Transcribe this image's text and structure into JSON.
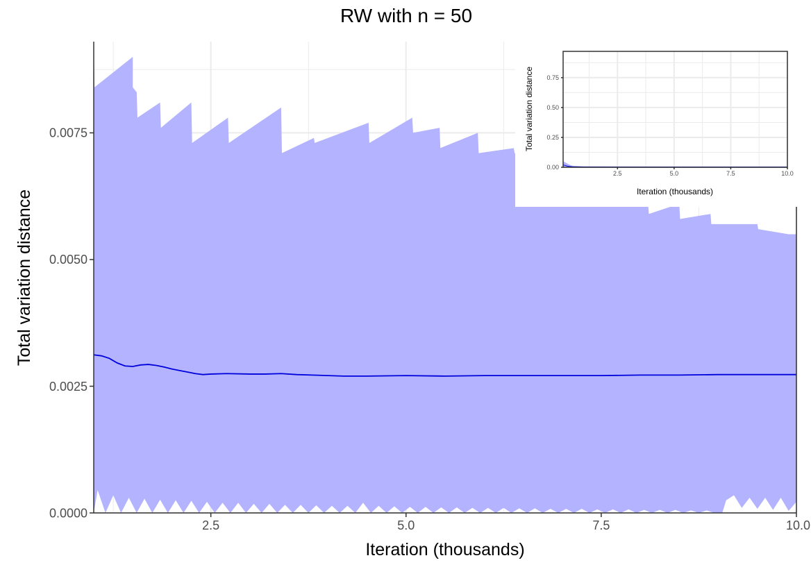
{
  "chart_data": [
    {
      "type": "area",
      "title": "RW with n = 50",
      "xlabel": "Iteration (thousands)",
      "ylabel": "Total variation distance",
      "xlim": [
        1.0,
        10.0
      ],
      "ylim": [
        0.0,
        0.0093
      ],
      "x_ticks": [
        2.5,
        5.0,
        7.5,
        10.0
      ],
      "x_tick_labels": [
        "2.5",
        "5.0",
        "7.5",
        "10.0"
      ],
      "y_ticks": [
        0.0,
        0.0025,
        0.005,
        0.0075
      ],
      "y_tick_labels": [
        "0.0000",
        "0.0025",
        "0.0050",
        "0.0075"
      ],
      "grid": true,
      "colors": {
        "band": "#b3b3ff",
        "line": "#0000dd",
        "grid": "#ebebeb",
        "axis": "#333333"
      },
      "series": [
        {
          "kind": "band_upper",
          "points": [
            [
              1.0,
              0.0093
            ],
            [
              1.01,
              0.0084
            ],
            [
              1.5,
              0.009
            ],
            [
              1.5,
              0.0084
            ],
            [
              1.55,
              0.0083
            ],
            [
              1.56,
              0.0078
            ],
            [
              1.85,
              0.0081
            ],
            [
              1.86,
              0.0076
            ],
            [
              2.25,
              0.0081
            ],
            [
              2.26,
              0.0073
            ],
            [
              2.72,
              0.0078
            ],
            [
              2.73,
              0.0073
            ],
            [
              3.4,
              0.008
            ],
            [
              3.41,
              0.0071
            ],
            [
              3.82,
              0.0074
            ],
            [
              3.83,
              0.0073
            ],
            [
              4.52,
              0.0077
            ],
            [
              4.53,
              0.0073
            ],
            [
              5.08,
              0.0078
            ],
            [
              5.09,
              0.0075
            ],
            [
              5.43,
              0.0076
            ],
            [
              5.44,
              0.0072
            ],
            [
              5.92,
              0.0075
            ],
            [
              5.93,
              0.0071
            ],
            [
              6.38,
              0.0072
            ],
            [
              6.39,
              0.0071
            ],
            [
              7.0,
              0.0068
            ],
            [
              7.4,
              0.0066
            ],
            [
              7.85,
              0.0063
            ],
            [
              8.1,
              0.0061
            ],
            [
              8.11,
              0.0059
            ],
            [
              8.5,
              0.0061
            ],
            [
              8.51,
              0.0058
            ],
            [
              8.9,
              0.0059
            ],
            [
              8.91,
              0.0057
            ],
            [
              9.5,
              0.0057
            ],
            [
              9.51,
              0.0056
            ],
            [
              9.9,
              0.0055
            ],
            [
              10.0,
              0.0055
            ]
          ]
        },
        {
          "kind": "band_lower",
          "points": [
            [
              1.0,
              0.0
            ],
            [
              1.05,
              0.00045
            ],
            [
              1.15,
              0.0
            ],
            [
              1.25,
              0.00035
            ],
            [
              1.35,
              0.0
            ],
            [
              1.45,
              0.0003
            ],
            [
              1.55,
              0.0
            ],
            [
              1.65,
              0.00028
            ],
            [
              1.75,
              0.0
            ],
            [
              1.85,
              0.00026
            ],
            [
              1.95,
              0.0
            ],
            [
              2.05,
              0.00025
            ],
            [
              2.15,
              0.0
            ],
            [
              2.25,
              0.00024
            ],
            [
              2.35,
              0.0
            ],
            [
              2.45,
              0.00022
            ],
            [
              2.55,
              0.0
            ],
            [
              2.65,
              0.0002
            ],
            [
              2.75,
              0.0
            ],
            [
              2.85,
              0.0002
            ],
            [
              2.95,
              0.0
            ],
            [
              3.05,
              0.00018
            ],
            [
              3.15,
              0.0
            ],
            [
              3.25,
              0.00018
            ],
            [
              3.35,
              0.0
            ],
            [
              3.45,
              0.00016
            ],
            [
              3.55,
              0.0
            ],
            [
              3.65,
              0.00016
            ],
            [
              3.75,
              0.0
            ],
            [
              3.85,
              0.00015
            ],
            [
              3.95,
              0.0
            ],
            [
              4.05,
              0.00014
            ],
            [
              4.15,
              0.0
            ],
            [
              4.25,
              0.00014
            ],
            [
              4.35,
              0.0
            ],
            [
              4.45,
              0.0002
            ],
            [
              4.55,
              0.0
            ],
            [
              4.65,
              0.00014
            ],
            [
              4.75,
              0.0
            ],
            [
              4.85,
              0.00013
            ],
            [
              4.95,
              0.0
            ],
            [
              5.05,
              0.00012
            ],
            [
              5.15,
              0.0
            ],
            [
              5.25,
              0.00012
            ],
            [
              5.35,
              0.0
            ],
            [
              5.45,
              0.00011
            ],
            [
              5.55,
              0.0
            ],
            [
              5.65,
              0.00011
            ],
            [
              5.75,
              0.0
            ],
            [
              5.85,
              0.0001
            ],
            [
              5.95,
              0.0
            ],
            [
              6.05,
              0.0001
            ],
            [
              6.15,
              0.0
            ],
            [
              6.25,
              0.0001
            ],
            [
              6.35,
              0.0
            ],
            [
              6.45,
              9e-05
            ],
            [
              6.55,
              0.0
            ],
            [
              6.65,
              9e-05
            ],
            [
              6.75,
              0.0
            ],
            [
              6.85,
              8e-05
            ],
            [
              6.95,
              0.0
            ],
            [
              7.05,
              8e-05
            ],
            [
              7.15,
              0.0
            ],
            [
              7.25,
              8e-05
            ],
            [
              7.35,
              0.0
            ],
            [
              7.45,
              7e-05
            ],
            [
              7.55,
              0.0
            ],
            [
              7.65,
              7e-05
            ],
            [
              7.75,
              0.0
            ],
            [
              7.85,
              7e-05
            ],
            [
              7.95,
              0.0
            ],
            [
              8.05,
              6e-05
            ],
            [
              8.15,
              0.0
            ],
            [
              8.25,
              6e-05
            ],
            [
              8.35,
              0.0
            ],
            [
              8.45,
              6e-05
            ],
            [
              8.55,
              0.0
            ],
            [
              8.65,
              5e-05
            ],
            [
              8.75,
              0.0
            ],
            [
              8.85,
              5e-05
            ],
            [
              8.95,
              0.0
            ],
            [
              9.05,
              0.0
            ],
            [
              9.1,
              0.00025
            ],
            [
              9.2,
              0.00035
            ],
            [
              9.3,
              0.0001
            ],
            [
              9.4,
              0.0003
            ],
            [
              9.5,
              8e-05
            ],
            [
              9.6,
              0.0003
            ],
            [
              9.7,
              6e-05
            ],
            [
              9.8,
              0.0003
            ],
            [
              9.9,
              4e-05
            ],
            [
              10.0,
              0.00022
            ]
          ]
        },
        {
          "kind": "line",
          "points": [
            [
              1.0,
              0.00312
            ],
            [
              1.1,
              0.0031
            ],
            [
              1.2,
              0.00305
            ],
            [
              1.3,
              0.00296
            ],
            [
              1.4,
              0.0029
            ],
            [
              1.5,
              0.00289
            ],
            [
              1.6,
              0.00292
            ],
            [
              1.7,
              0.00293
            ],
            [
              1.8,
              0.00291
            ],
            [
              1.9,
              0.00288
            ],
            [
              2.0,
              0.00284
            ],
            [
              2.1,
              0.00281
            ],
            [
              2.2,
              0.00278
            ],
            [
              2.3,
              0.00275
            ],
            [
              2.4,
              0.00273
            ],
            [
              2.5,
              0.00274
            ],
            [
              2.7,
              0.00275
            ],
            [
              3.0,
              0.00274
            ],
            [
              3.2,
              0.00274
            ],
            [
              3.4,
              0.00275
            ],
            [
              3.6,
              0.00273
            ],
            [
              3.8,
              0.00272
            ],
            [
              4.0,
              0.00271
            ],
            [
              4.2,
              0.0027
            ],
            [
              4.5,
              0.0027
            ],
            [
              5.0,
              0.00271
            ],
            [
              5.5,
              0.0027
            ],
            [
              6.0,
              0.00271
            ],
            [
              6.5,
              0.00271
            ],
            [
              7.0,
              0.00271
            ],
            [
              7.5,
              0.00271
            ],
            [
              8.0,
              0.00272
            ],
            [
              8.5,
              0.00272
            ],
            [
              9.0,
              0.00273
            ],
            [
              9.5,
              0.00273
            ],
            [
              10.0,
              0.00273
            ]
          ]
        }
      ]
    },
    {
      "type": "area",
      "title": "",
      "xlabel": "Iteration (thousands)",
      "ylabel": "Total variation distance",
      "xlim": [
        0.1,
        10.0
      ],
      "ylim": [
        0.0,
        0.97
      ],
      "x_ticks": [
        2.5,
        5.0,
        7.5,
        10.0
      ],
      "x_tick_labels": [
        "2.5",
        "5.0",
        "7.5",
        "10.0"
      ],
      "y_ticks": [
        0.0,
        0.25,
        0.5,
        0.75
      ],
      "y_tick_labels": [
        "0.00",
        "0.25",
        "0.50",
        "0.75"
      ],
      "grid": true,
      "legend": "none",
      "placement": "top-right",
      "series": [
        {
          "kind": "band_upper",
          "points": [
            [
              0.1,
              0.05
            ],
            [
              0.2,
              0.04
            ],
            [
              0.3,
              0.03
            ],
            [
              0.45,
              0.015
            ],
            [
              0.6,
              0.01
            ],
            [
              1.0,
              0.008
            ],
            [
              2.0,
              0.007
            ],
            [
              5.0,
              0.006
            ],
            [
              10.0,
              0.0055
            ]
          ]
        },
        {
          "kind": "line",
          "points": [
            [
              0.1,
              0.02
            ],
            [
              0.2,
              0.015
            ],
            [
              0.3,
              0.009
            ],
            [
              0.5,
              0.005
            ],
            [
              1.0,
              0.003
            ],
            [
              3.0,
              0.0027
            ],
            [
              10.0,
              0.0027
            ]
          ]
        }
      ]
    }
  ]
}
